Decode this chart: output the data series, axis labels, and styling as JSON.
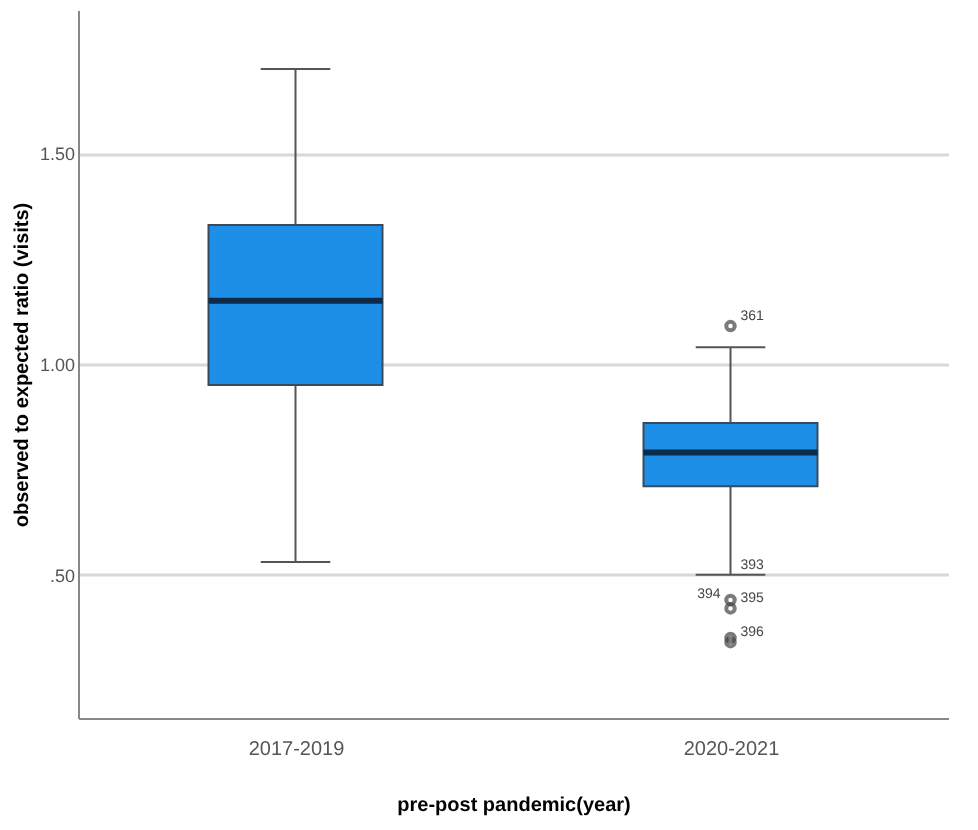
{
  "chart_data": {
    "type": "box",
    "xlabel": "pre-post pandemic(year)",
    "ylabel": "observed to expected ratio (visits)",
    "categories": [
      "2017-2019",
      "2020-2021"
    ],
    "color": "#1e8fe6",
    "boxes": [
      {
        "low": 0.53,
        "q1": 0.95,
        "median": 1.15,
        "q3": 1.33,
        "high": 1.7
      },
      {
        "low": 0.5,
        "q1": 0.71,
        "median": 0.79,
        "q3": 0.86,
        "high": 1.04
      }
    ],
    "series": [
      {
        "type": "scatter",
        "marker": "circle",
        "color": "#444444",
        "x": [
          "2020-2021",
          "2020-2021",
          "2020-2021",
          "2020-2021",
          "2020-2021"
        ],
        "values": [
          1.09,
          0.44,
          0.42,
          0.35,
          0.34
        ]
      }
    ],
    "ylim": [
      0.16,
      1.84
    ],
    "yticks": [
      {
        "value": 0.5,
        "label": ".50"
      },
      {
        "value": 1.0,
        "label": "1.00"
      },
      {
        "value": 1.5,
        "label": "1.50"
      }
    ],
    "grid": "y",
    "legend": false,
    "annotations": [
      {
        "text": "361",
        "x": "2020-2021",
        "y": 1.09
      },
      {
        "text": "393",
        "x": "2020-2021",
        "y": 0.5
      },
      {
        "text": "394",
        "x": "2020-2021",
        "y": 0.44
      },
      {
        "text": "395",
        "x": "2020-2021",
        "y": 0.42
      },
      {
        "text": "396",
        "x": "2020-2021",
        "y": 0.34
      }
    ]
  }
}
